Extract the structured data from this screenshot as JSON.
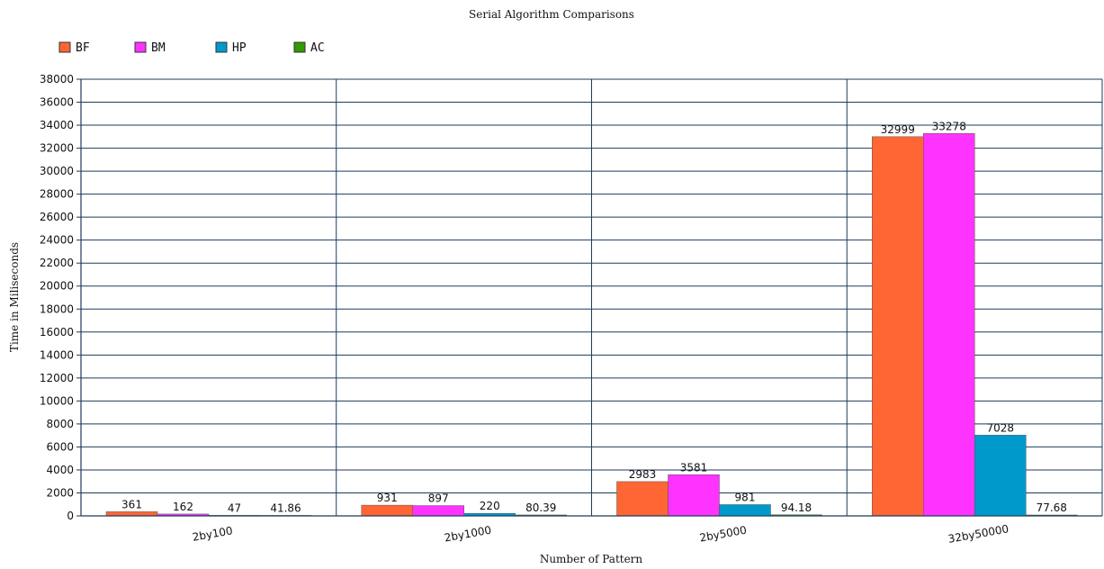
{
  "chart_data": {
    "type": "bar",
    "title": "Serial Algorithm Comparisons",
    "xlabel": "Number of Pattern",
    "ylabel": "Time in Miliseconds",
    "categories": [
      "2by100",
      "2by1000",
      "2by5000",
      "32by50000"
    ],
    "series": [
      {
        "name": "BF",
        "color": "#ff6633",
        "values": [
          361,
          931,
          2983,
          32999
        ],
        "labels": [
          "361",
          "931",
          "2983",
          "32999"
        ]
      },
      {
        "name": "BM",
        "color": "#ff33ff",
        "values": [
          162,
          897,
          3581,
          33278
        ],
        "labels": [
          "162",
          "897",
          "3581",
          "33278"
        ]
      },
      {
        "name": "HP",
        "color": "#0099cc",
        "values": [
          47,
          220,
          981,
          7028
        ],
        "labels": [
          "47",
          "220",
          "981",
          "7028"
        ]
      },
      {
        "name": "AC",
        "color": "#339900",
        "values": [
          41.86,
          80.39,
          94.18,
          77.68
        ],
        "labels": [
          "41.86",
          "80.39",
          "94.18",
          "77.68"
        ]
      }
    ],
    "ylim": [
      0,
      38000
    ],
    "yticks": [
      "0",
      "2000",
      "4000",
      "6000",
      "8000",
      "10000",
      "12000",
      "14000",
      "16000",
      "18000",
      "20000",
      "22000",
      "24000",
      "26000",
      "28000",
      "30000",
      "32000",
      "34000",
      "36000",
      "38000"
    ],
    "grid": true,
    "legend_position": "top-left"
  }
}
